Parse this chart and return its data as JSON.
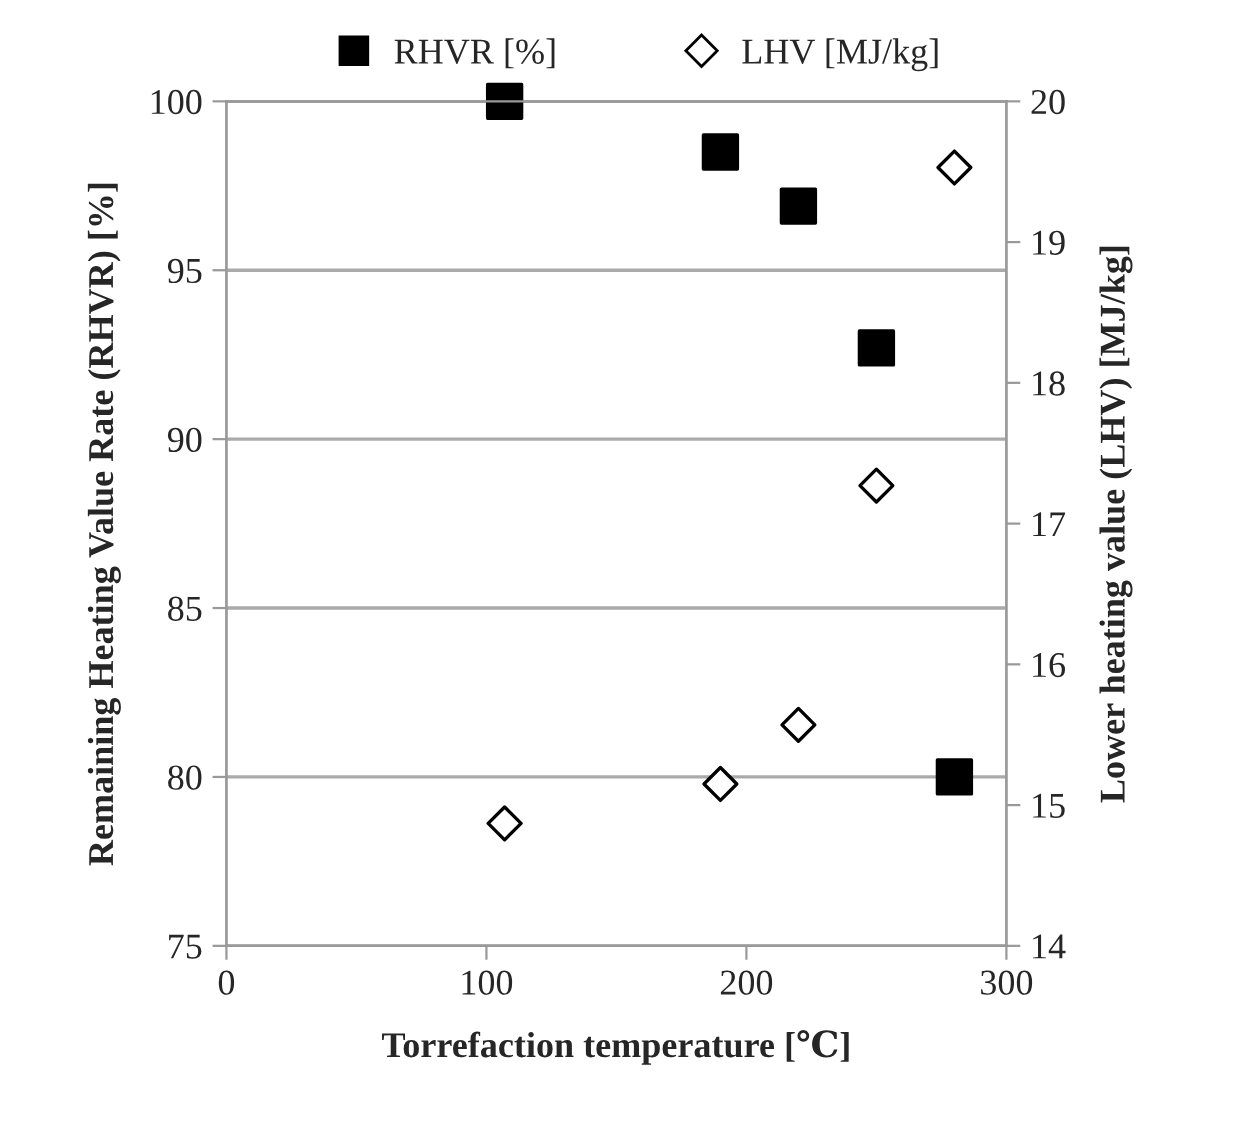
{
  "chart_data": {
    "type": "scatter",
    "xlabel": "Torrefaction temperature [℃]",
    "ylabel": "Remaining Heating Value Rate (RHVR) [%]",
    "y2label": "Lower heating value (LHV) [MJ/kg]",
    "xlim": [
      0,
      300
    ],
    "xticks": [
      0,
      100,
      200,
      300
    ],
    "ylim": [
      75,
      100
    ],
    "yticks": [
      75,
      80,
      85,
      90,
      95,
      100
    ],
    "y2lim": [
      14,
      20
    ],
    "y2ticks": [
      14,
      15,
      16,
      17,
      18,
      19,
      20
    ],
    "grid": "y",
    "legend": "top",
    "series": [
      {
        "name": "RHVR [%]",
        "color": "#000000",
        "marker": "square",
        "x": [
          107,
          190,
          220,
          250,
          280
        ],
        "values": [
          100,
          98.5,
          96.9,
          92.7,
          80
        ]
      },
      {
        "name": "LHV [MJ/kg]",
        "color": "#000000",
        "marker": "diamond",
        "axis": "y2",
        "x": [
          107,
          190,
          220,
          250,
          280
        ],
        "values": [
          14.87,
          15.15,
          15.57,
          17.27,
          19.53
        ]
      }
    ]
  }
}
